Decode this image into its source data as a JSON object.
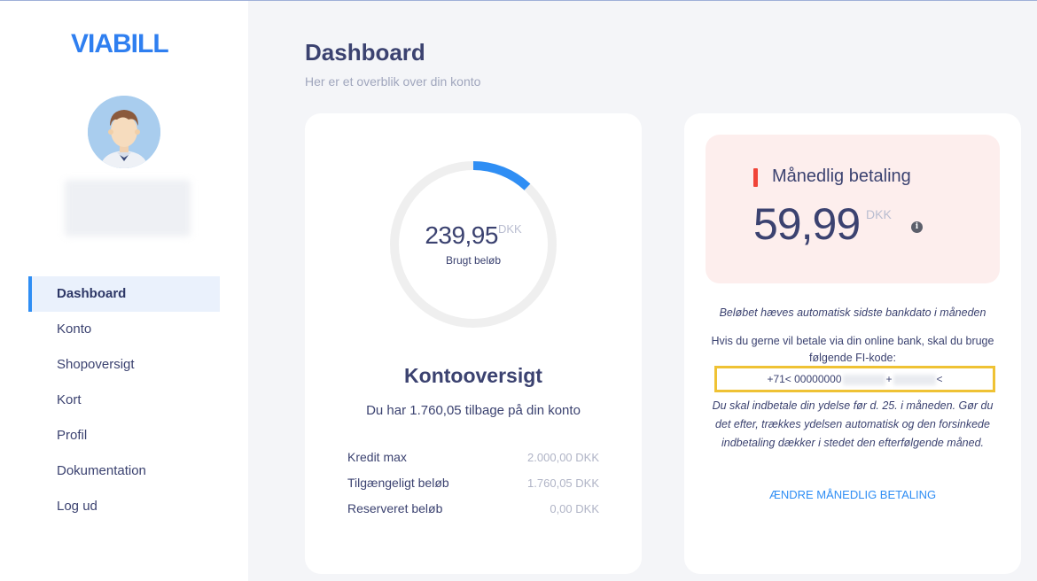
{
  "brand": {
    "logo_text": "VIABILL",
    "accent": "#2f8ef4",
    "logo_color": "#2f7ff0"
  },
  "sidebar": {
    "items": [
      {
        "label": "Dashboard",
        "active": true
      },
      {
        "label": "Konto"
      },
      {
        "label": "Shopoversigt"
      },
      {
        "label": "Kort"
      },
      {
        "label": "Profil"
      },
      {
        "label": "Dokumentation"
      },
      {
        "label": "Log ud"
      }
    ]
  },
  "header": {
    "title": "Dashboard",
    "subtitle": "Her er et overblik over din konto"
  },
  "account": {
    "used_amount": "239,95",
    "currency": "DKK",
    "used_label": "Brugt beløb",
    "used_fraction": 0.12,
    "title": "Kontooversigt",
    "remaining_text": "Du har 1.760,05 tilbage på din konto",
    "rows": [
      {
        "label": "Kredit max",
        "value": "2.000,00 DKK"
      },
      {
        "label": "Tilgængeligt beløb",
        "value": "1.760,05 DKK"
      },
      {
        "label": "Reserveret beløb",
        "value": "0,00 DKK"
      }
    ]
  },
  "payment": {
    "title": "Månedlig betaling",
    "amount": "59,99",
    "currency": "DKK",
    "info_icon": "info-icon",
    "note_auto": "Beløbet hæves automatisk sidste bankdato i måneden",
    "note_bank": "Hvis du gerne vil betale via din online bank, skal du bruge følgende FI-kode:",
    "fi_code_prefix": "+71< 00000000",
    "fi_code_mid": "+",
    "fi_code_suffix": "<",
    "note_deadline": "Du skal indbetale din ydelse før d. 25. i måneden. Gør du det efter, trækkes ydelsen automatisk og den forsinkede indbetaling dækker i stedet den efterfølgende måned.",
    "change_link": "ÆNDRE MÅNEDLIG BETALING",
    "status_color": "#f04438"
  }
}
